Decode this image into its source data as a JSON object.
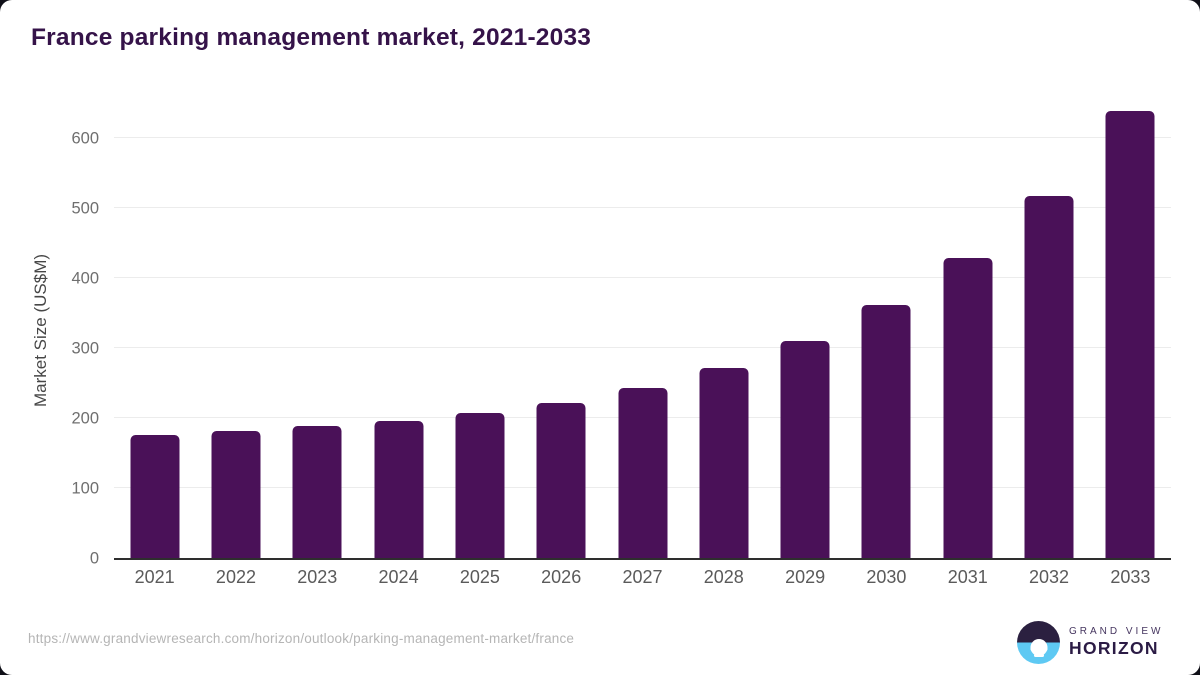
{
  "chart_data": {
    "type": "bar",
    "title": "France parking management market, 2021-2033",
    "categories": [
      "2021",
      "2022",
      "2023",
      "2024",
      "2025",
      "2026",
      "2027",
      "2028",
      "2029",
      "2030",
      "2031",
      "2032",
      "2033"
    ],
    "values": [
      176,
      182,
      188,
      196,
      207,
      222,
      243,
      271,
      310,
      362,
      428,
      517,
      639
    ],
    "xlabel": "",
    "ylabel": "Market Size (US$M)",
    "ylim": [
      0,
      650
    ],
    "yticks": [
      0,
      100,
      200,
      300,
      400,
      500,
      600
    ],
    "grid": "horizontal",
    "legend": "none"
  },
  "footer": {
    "source_url": "https://www.grandviewresearch.com/horizon/outlook/parking-management-market/france",
    "logo": {
      "line1": "GRAND VIEW",
      "line2": "HORIZON",
      "mark": "horizon-sun-circle-icon"
    }
  },
  "colors": {
    "bar": "#4a1158",
    "title": "#351349",
    "axis_line": "#2e2e2e",
    "gridline": "#ececec",
    "tick_label": "#6f6f6f",
    "x_label": "#5a5a5a",
    "url": "#b5b5b5",
    "logo_dark": "#2b2040",
    "logo_blue": "#5ec9f3"
  }
}
